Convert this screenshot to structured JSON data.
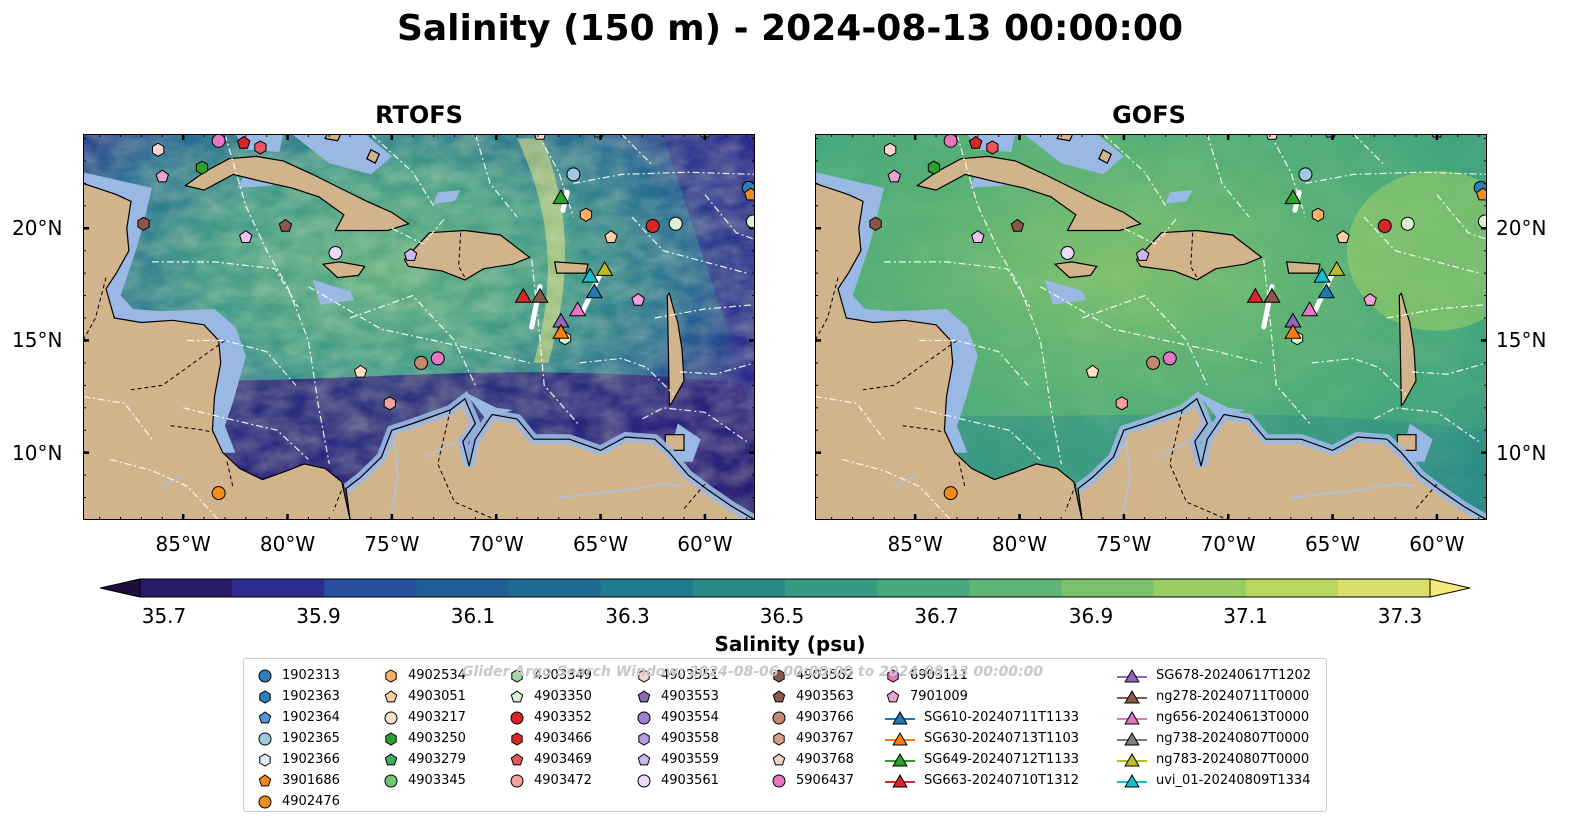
{
  "title": "Salinity (150 m) - 2024-08-13 00:00:00",
  "panels": [
    {
      "name": "RTOFS"
    },
    {
      "name": "GOFS"
    }
  ],
  "axes": {
    "x_ticks": [
      "85°W",
      "80°W",
      "75°W",
      "70°W",
      "65°W",
      "60°W"
    ],
    "x_values": [
      -85,
      -80,
      -75,
      -70,
      -65,
      -60
    ],
    "y_ticks": [
      "20°N",
      "15°N",
      "10°N"
    ],
    "y_values": [
      20,
      15,
      10
    ],
    "lon_range": [
      -89.8,
      -57.6
    ],
    "lat_range": [
      7.0,
      24.2
    ]
  },
  "colorbar": {
    "label": "Salinity (psu)",
    "ticks": [
      "35.7",
      "35.9",
      "36.1",
      "36.3",
      "36.5",
      "36.7",
      "36.9",
      "37.1",
      "37.3"
    ],
    "colors": [
      "#2a1a6b",
      "#2e2d8f",
      "#264f9b",
      "#1f5e97",
      "#1e6c93",
      "#217b8e",
      "#2a8a88",
      "#369a82",
      "#47a87b",
      "#5eb674",
      "#79c26b",
      "#97cd63",
      "#b8d660",
      "#d8df68"
    ],
    "under_color": "#1c0f3e",
    "over_color": "#f5e97a"
  },
  "watermark": "Glider Argo Search Window: 2024-08-06 00:00:00 to 2024-08-13 00:00:00",
  "legend": {
    "columns": [
      [
        {
          "label": "1902313",
          "marker": "circle",
          "color": "#2c7fb8"
        },
        {
          "label": "1902363",
          "marker": "hexagon",
          "color": "#2c7fb8"
        },
        {
          "label": "1902364",
          "marker": "pentagon",
          "color": "#4b9bdc"
        },
        {
          "label": "1902365",
          "marker": "circle",
          "color": "#9ecae1"
        },
        {
          "label": "1902366",
          "marker": "hexagon",
          "color": "#deebf7"
        },
        {
          "label": "3901686",
          "marker": "pentagon",
          "color": "#f28b1d"
        },
        {
          "label": "4902476",
          "marker": "circle",
          "color": "#f28b1d"
        }
      ],
      [
        {
          "label": "4902534",
          "marker": "hexagon",
          "color": "#fdae6b"
        },
        {
          "label": "4903051",
          "marker": "pentagon",
          "color": "#fdd0a2"
        },
        {
          "label": "4903217",
          "marker": "circle",
          "color": "#fde0c5"
        },
        {
          "label": "4903250",
          "marker": "hexagon",
          "color": "#2ca02c"
        },
        {
          "label": "4903279",
          "marker": "pentagon",
          "color": "#41ab5d"
        },
        {
          "label": "4903345",
          "marker": "circle",
          "color": "#74c476"
        }
      ],
      [
        {
          "label": "4903349",
          "marker": "hexagon",
          "color": "#a1d99b"
        },
        {
          "label": "4903350",
          "marker": "pentagon",
          "color": "#d9f0d3"
        },
        {
          "label": "4903352",
          "marker": "circle",
          "color": "#d62728"
        },
        {
          "label": "4903466",
          "marker": "hexagon",
          "color": "#d62728"
        },
        {
          "label": "4903469",
          "marker": "pentagon",
          "color": "#e8555e"
        },
        {
          "label": "4903472",
          "marker": "circle",
          "color": "#f4a09c"
        }
      ],
      [
        {
          "label": "4903551",
          "marker": "hexagon",
          "color": "#fcd5d0"
        },
        {
          "label": "4903553",
          "marker": "pentagon",
          "color": "#8c6bb1"
        },
        {
          "label": "4903554",
          "marker": "circle",
          "color": "#9e7fd1"
        },
        {
          "label": "4903558",
          "marker": "hexagon",
          "color": "#b89be3"
        },
        {
          "label": "4903559",
          "marker": "pentagon",
          "color": "#cdb8ef"
        },
        {
          "label": "4903561",
          "marker": "circle",
          "color": "#e8dcf8"
        }
      ],
      [
        {
          "label": "4903562",
          "marker": "hexagon",
          "color": "#8c564b"
        },
        {
          "label": "4903563",
          "marker": "pentagon",
          "color": "#8c564b"
        },
        {
          "label": "4903766",
          "marker": "circle",
          "color": "#c4876f"
        },
        {
          "label": "4903767",
          "marker": "hexagon",
          "color": "#d8a18c"
        },
        {
          "label": "4903768",
          "marker": "pentagon",
          "color": "#f2d2c2"
        },
        {
          "label": "5906437",
          "marker": "circle",
          "color": "#e377c2"
        }
      ],
      [
        {
          "label": "6903111",
          "marker": "hexagon",
          "color": "#e377c2"
        },
        {
          "label": "7901009",
          "marker": "pentagon",
          "color": "#f29fd3"
        },
        {
          "label": "SG610-20240711T1133",
          "marker": "triangle-line",
          "color": "#1f77b4"
        },
        {
          "label": "SG630-20240713T1103",
          "marker": "triangle-line",
          "color": "#ff7f0e"
        },
        {
          "label": "SG649-20240712T1133",
          "marker": "triangle-line",
          "color": "#2ca02c"
        },
        {
          "label": "SG663-20240710T1312",
          "marker": "triangle-line",
          "color": "#d62728"
        }
      ],
      [
        {
          "label": "SG678-20240617T1202",
          "marker": "triangle-line",
          "color": "#9467bd"
        },
        {
          "label": "ng278-20240711T0000",
          "marker": "triangle-line",
          "color": "#8c564b"
        },
        {
          "label": "ng656-20240613T0000",
          "marker": "triangle-line",
          "color": "#e377c2"
        },
        {
          "label": "ng738-20240807T0000",
          "marker": "triangle-line",
          "color": "#7f7f7f"
        },
        {
          "label": "ng783-20240807T0000",
          "marker": "triangle-line",
          "color": "#bcbd22"
        },
        {
          "label": "uvi_01-20240809T1334",
          "marker": "triangle-line",
          "color": "#17becf"
        }
      ]
    ]
  },
  "floats": [
    {
      "lon": -86.2,
      "lat": 23.5,
      "marker": "hexagon",
      "color": "#fcd5d0"
    },
    {
      "lon": -86.0,
      "lat": 22.3,
      "marker": "pentagon",
      "color": "#f29fd3"
    },
    {
      "lon": -84.1,
      "lat": 22.7,
      "marker": "hexagon",
      "color": "#2ca02c"
    },
    {
      "lon": -83.3,
      "lat": 23.9,
      "marker": "circle",
      "color": "#e377c2"
    },
    {
      "lon": -82.1,
      "lat": 23.8,
      "marker": "pentagon",
      "color": "#d62728"
    },
    {
      "lon": -81.3,
      "lat": 23.6,
      "marker": "hexagon",
      "color": "#e8555e"
    },
    {
      "lon": -82.0,
      "lat": 19.6,
      "marker": "pentagon",
      "color": "#e8c5f1"
    },
    {
      "lon": -80.1,
      "lat": 20.1,
      "marker": "pentagon",
      "color": "#8c564b"
    },
    {
      "lon": -86.9,
      "lat": 20.2,
      "marker": "hexagon",
      "color": "#8c564b"
    },
    {
      "lon": -77.7,
      "lat": 18.9,
      "marker": "circle",
      "color": "#e8dcf8"
    },
    {
      "lon": -74.1,
      "lat": 18.8,
      "marker": "pentagon",
      "color": "#cdb8ef"
    },
    {
      "lon": -76.5,
      "lat": 13.6,
      "marker": "pentagon",
      "color": "#fde0c5"
    },
    {
      "lon": -73.6,
      "lat": 14.0,
      "marker": "circle",
      "color": "#c4876f"
    },
    {
      "lon": -72.8,
      "lat": 14.2,
      "marker": "circle",
      "color": "#e377c2"
    },
    {
      "lon": -75.1,
      "lat": 12.2,
      "marker": "hexagon",
      "color": "#f4a09c"
    },
    {
      "lon": -83.3,
      "lat": 8.2,
      "marker": "circle",
      "color": "#f28b1d"
    },
    {
      "lon": -67.9,
      "lat": 24.2,
      "marker": "pentagon",
      "color": "#fcd5d0"
    },
    {
      "lon": -66.3,
      "lat": 22.4,
      "marker": "circle",
      "color": "#9ecae1"
    },
    {
      "lon": -65.1,
      "lat": 24.3,
      "marker": "pentagon",
      "color": "#4b9bdc"
    },
    {
      "lon": -60.0,
      "lat": 24.3,
      "marker": "pentagon",
      "color": "#4b9bdc"
    },
    {
      "lon": -65.7,
      "lat": 20.6,
      "marker": "hexagon",
      "color": "#fdae6b"
    },
    {
      "lon": -64.5,
      "lat": 19.6,
      "marker": "pentagon",
      "color": "#fdd0a2"
    },
    {
      "lon": -62.5,
      "lat": 20.1,
      "marker": "circle",
      "color": "#d62728"
    },
    {
      "lon": -61.4,
      "lat": 20.2,
      "marker": "circle",
      "color": "#d9f0d3"
    },
    {
      "lon": -57.9,
      "lat": 21.8,
      "marker": "circle",
      "color": "#2c7fb8"
    },
    {
      "lon": -57.8,
      "lat": 21.5,
      "marker": "pentagon",
      "color": "#f28b1d"
    },
    {
      "lon": -57.7,
      "lat": 20.3,
      "marker": "circle",
      "color": "#d9f0d3"
    },
    {
      "lon": -63.2,
      "lat": 16.8,
      "marker": "pentagon",
      "color": "#f29fd3"
    },
    {
      "lon": -66.7,
      "lat": 15.1,
      "marker": "hexagon",
      "color": "#d9f0d3"
    }
  ],
  "gliders": [
    {
      "lon": -68.7,
      "lat": 16.9,
      "color": "#d62728"
    },
    {
      "lon": -67.9,
      "lat": 16.9,
      "color": "#8c564b"
    },
    {
      "lon": -66.9,
      "lat": 21.3,
      "color": "#2ca02c"
    },
    {
      "lon": -65.5,
      "lat": 17.8,
      "color": "#17becf"
    },
    {
      "lon": -64.8,
      "lat": 18.1,
      "color": "#bcbd22"
    },
    {
      "lon": -65.3,
      "lat": 17.1,
      "color": "#1f77b4"
    },
    {
      "lon": -66.1,
      "lat": 16.3,
      "color": "#e377c2"
    },
    {
      "lon": -66.9,
      "lat": 15.8,
      "color": "#9467bd"
    },
    {
      "lon": -66.9,
      "lat": 15.3,
      "color": "#ff7f0e"
    }
  ],
  "glider_tracks": [
    [
      [
        -68.3,
        15.6
      ],
      [
        -67.9,
        17.4
      ]
    ],
    [
      [
        -65.9,
        16.2
      ],
      [
        -65.0,
        18.0
      ]
    ],
    [
      [
        -66.8,
        20.8
      ],
      [
        -66.6,
        21.6
      ]
    ]
  ]
}
